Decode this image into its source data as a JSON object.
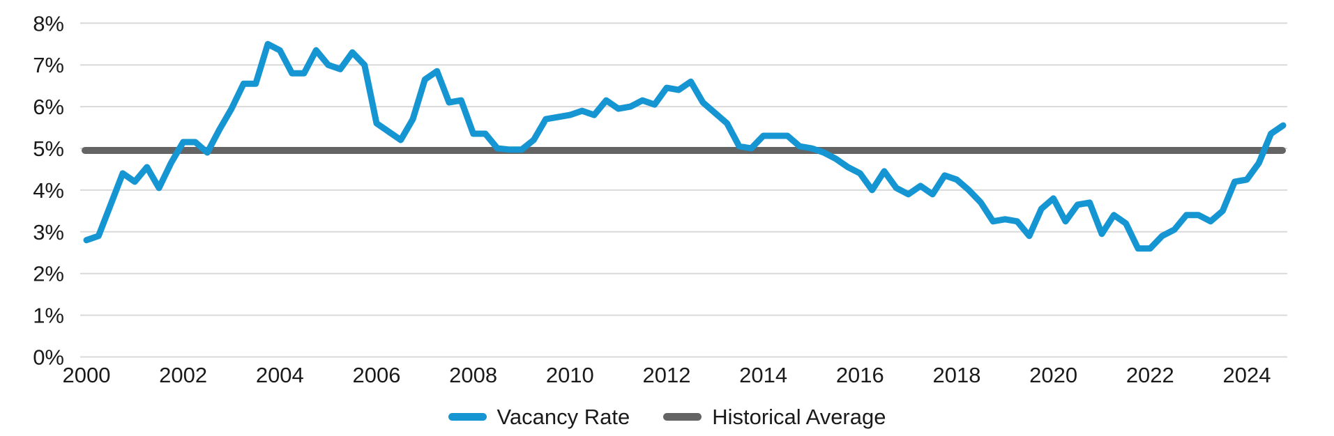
{
  "chart_data": {
    "type": "line",
    "title": "",
    "xlabel": "",
    "ylabel": "",
    "grid": "horizontal",
    "ylim": [
      0,
      8
    ],
    "ytick_labels": [
      "0%",
      "1%",
      "2%",
      "3%",
      "4%",
      "5%",
      "6%",
      "7%",
      "8%"
    ],
    "ytick_values": [
      0,
      1,
      2,
      3,
      4,
      5,
      6,
      7,
      8
    ],
    "xtick_labels": [
      "2000",
      "2002",
      "2004",
      "2006",
      "2008",
      "2010",
      "2012",
      "2014",
      "2016",
      "2018",
      "2020",
      "2022",
      "2024"
    ],
    "xtick_years": [
      2000,
      2002,
      2004,
      2006,
      2008,
      2010,
      2012,
      2014,
      2016,
      2018,
      2020,
      2022,
      2024
    ],
    "x_frequency": "quarterly",
    "x_start": "2000 Q1",
    "x_end": "2024 Q4",
    "legend_position": "bottom-center",
    "series": [
      {
        "name": "Vacancy Rate",
        "color": "#1695d3",
        "values": [
          2.8,
          2.9,
          3.65,
          4.4,
          4.2,
          4.55,
          4.05,
          4.65,
          5.15,
          5.15,
          4.9,
          5.45,
          5.95,
          6.55,
          6.55,
          7.5,
          7.35,
          6.8,
          6.8,
          7.35,
          7.0,
          6.9,
          7.3,
          7.0,
          5.6,
          5.4,
          5.2,
          5.7,
          6.65,
          6.85,
          6.1,
          6.15,
          5.35,
          5.35,
          5.0,
          4.97,
          4.97,
          5.2,
          5.7,
          5.75,
          5.8,
          5.9,
          5.8,
          6.15,
          5.95,
          6.0,
          6.15,
          6.05,
          6.45,
          6.4,
          6.6,
          6.1,
          5.85,
          5.6,
          5.05,
          5.0,
          5.3,
          5.3,
          5.3,
          5.05,
          5.0,
          4.9,
          4.75,
          4.55,
          4.4,
          4.0,
          4.45,
          4.05,
          3.9,
          4.1,
          3.9,
          4.35,
          4.25,
          4.0,
          3.7,
          3.25,
          3.3,
          3.25,
          2.9,
          3.55,
          3.8,
          3.25,
          3.65,
          3.7,
          2.95,
          3.4,
          3.2,
          2.6,
          2.6,
          2.9,
          3.05,
          3.4,
          3.4,
          3.25,
          3.5,
          4.2,
          4.25,
          4.65,
          5.35,
          5.55
        ]
      },
      {
        "name": "Historical Average",
        "color": "#646464",
        "constant_value": 4.95
      }
    ]
  },
  "legend": {
    "items": [
      {
        "label": "Vacancy Rate",
        "color": "#1695d3"
      },
      {
        "label": "Historical Average",
        "color": "#646464"
      }
    ]
  }
}
